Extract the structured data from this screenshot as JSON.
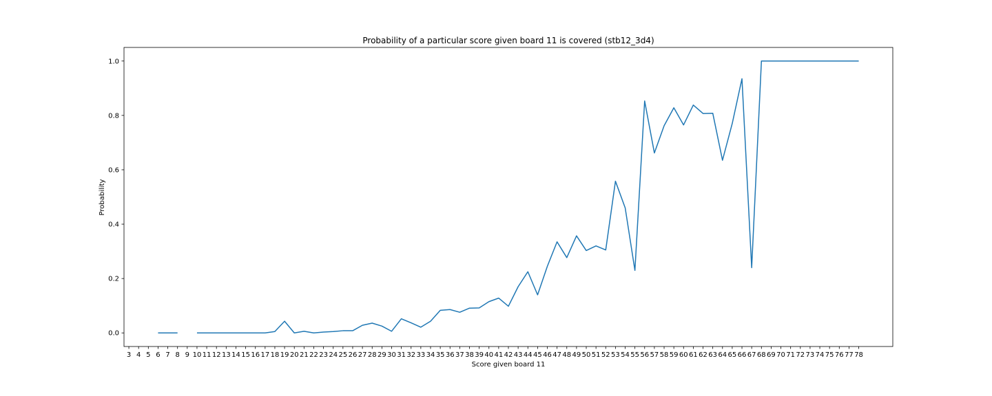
{
  "chart_data": {
    "type": "line",
    "title": "Probability of a particular score given board 11 is covered (stb12_3d4)",
    "xlabel": "Score given board 11",
    "ylabel": "Probability",
    "ylim": [
      -0.05,
      1.05
    ],
    "xlim": [
      2.5,
      81.5
    ],
    "x_ticks": [
      3,
      4,
      5,
      6,
      7,
      8,
      9,
      10,
      11,
      12,
      13,
      14,
      15,
      16,
      17,
      18,
      19,
      20,
      21,
      22,
      23,
      24,
      25,
      26,
      27,
      28,
      29,
      30,
      31,
      32,
      33,
      34,
      35,
      36,
      37,
      38,
      39,
      40,
      41,
      42,
      43,
      44,
      45,
      46,
      47,
      48,
      49,
      50,
      51,
      52,
      53,
      54,
      55,
      56,
      57,
      58,
      59,
      60,
      61,
      62,
      63,
      64,
      65,
      66,
      67,
      68,
      69,
      70,
      71,
      72,
      73,
      74,
      75,
      76,
      77,
      78
    ],
    "y_ticks": [
      0.0,
      0.2,
      0.4,
      0.6,
      0.8,
      1.0
    ],
    "y_tick_labels": [
      "0.0",
      "0.2",
      "0.4",
      "0.6",
      "0.8",
      "1.0"
    ],
    "grid": false,
    "legend": "none",
    "colors": {
      "line": "#1f77b4"
    },
    "series": [
      {
        "x": [
          3,
          4,
          5,
          6,
          7,
          8,
          9,
          10,
          11,
          12,
          13,
          14,
          15,
          16,
          17,
          18,
          19,
          20,
          21,
          22,
          23,
          24,
          25,
          26,
          27,
          28,
          29,
          30,
          31,
          32,
          33,
          34,
          35,
          36,
          37,
          38,
          39,
          40,
          41,
          42,
          43,
          44,
          45,
          46,
          47,
          48,
          49,
          50,
          51,
          52,
          53,
          54,
          55,
          56,
          57,
          58,
          59,
          60,
          61,
          62,
          63,
          64,
          65,
          66,
          67,
          68,
          69,
          70,
          71,
          72,
          73,
          74,
          75,
          76,
          77,
          78
        ],
        "y": [
          null,
          null,
          null,
          0.0,
          0.0,
          0.0,
          null,
          0.0,
          0.0,
          0.0,
          0.0,
          0.0,
          0.0,
          0.0,
          0.0,
          0.005,
          0.043,
          0.0,
          0.006,
          0.0,
          0.003,
          0.005,
          0.008,
          0.008,
          0.028,
          0.036,
          0.025,
          0.006,
          0.052,
          0.037,
          0.021,
          0.043,
          0.083,
          0.086,
          0.076,
          0.091,
          0.092,
          0.115,
          0.128,
          0.098,
          0.17,
          0.225,
          0.14,
          0.245,
          0.335,
          0.277,
          0.357,
          0.303,
          0.32,
          0.305,
          0.558,
          0.46,
          0.23,
          0.853,
          0.662,
          0.762,
          0.828,
          0.765,
          0.838,
          0.807,
          0.808,
          0.635,
          0.77,
          0.935,
          0.24,
          1.0,
          1.0,
          1.0,
          1.0,
          1.0,
          1.0,
          1.0,
          1.0,
          1.0,
          1.0,
          1.0
        ]
      }
    ]
  }
}
